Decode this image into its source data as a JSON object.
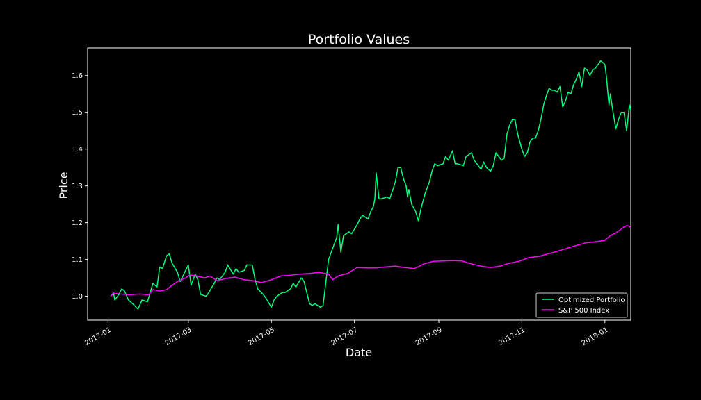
{
  "chart_data": {
    "type": "line",
    "title": "Portfolio Values",
    "xlabel": "Date",
    "ylabel": "Price",
    "xlim": [
      "2016-12-17",
      "2018-01-20"
    ],
    "ylim": [
      0.935,
      1.675
    ],
    "x_ticks": [
      "2017-01",
      "2017-03",
      "2017-05",
      "2017-07",
      "2017-09",
      "2017-11",
      "2018-01"
    ],
    "y_ticks": [
      "1.0",
      "1.1",
      "1.2",
      "1.3",
      "1.4",
      "1.5",
      "1.6"
    ],
    "grid": false,
    "legend_position": "lower right",
    "colors": {
      "background": "#000000",
      "text": "#ffffff",
      "axes": "#ffffff"
    },
    "series": [
      {
        "name": "Optimized Portfolio",
        "color": "#00ff7f",
        "points": [
          [
            "2017-01-03",
            1.0
          ],
          [
            "2017-01-05",
            1.01
          ],
          [
            "2017-01-06",
            0.99
          ],
          [
            "2017-01-09",
            1.005
          ],
          [
            "2017-01-11",
            1.02
          ],
          [
            "2017-01-13",
            1.015
          ],
          [
            "2017-01-16",
            0.99
          ],
          [
            "2017-01-19",
            0.98
          ],
          [
            "2017-01-23",
            0.965
          ],
          [
            "2017-01-26",
            0.99
          ],
          [
            "2017-01-30",
            0.985
          ],
          [
            "2017-02-01",
            1.01
          ],
          [
            "2017-02-03",
            1.035
          ],
          [
            "2017-02-06",
            1.025
          ],
          [
            "2017-02-08",
            1.08
          ],
          [
            "2017-02-10",
            1.075
          ],
          [
            "2017-02-13",
            1.11
          ],
          [
            "2017-02-15",
            1.115
          ],
          [
            "2017-02-17",
            1.09
          ],
          [
            "2017-02-21",
            1.065
          ],
          [
            "2017-02-23",
            1.04
          ],
          [
            "2017-02-27",
            1.07
          ],
          [
            "2017-03-01",
            1.085
          ],
          [
            "2017-03-03",
            1.03
          ],
          [
            "2017-03-06",
            1.06
          ],
          [
            "2017-03-08",
            1.045
          ],
          [
            "2017-03-10",
            1.005
          ],
          [
            "2017-03-14",
            1.0
          ],
          [
            "2017-03-16",
            1.01
          ],
          [
            "2017-03-20",
            1.035
          ],
          [
            "2017-03-22",
            1.05
          ],
          [
            "2017-03-24",
            1.045
          ],
          [
            "2017-03-28",
            1.065
          ],
          [
            "2017-03-30",
            1.085
          ],
          [
            "2017-04-03",
            1.06
          ],
          [
            "2017-04-05",
            1.075
          ],
          [
            "2017-04-07",
            1.065
          ],
          [
            "2017-04-11",
            1.07
          ],
          [
            "2017-04-13",
            1.085
          ],
          [
            "2017-04-17",
            1.085
          ],
          [
            "2017-04-19",
            1.045
          ],
          [
            "2017-04-21",
            1.02
          ],
          [
            "2017-04-25",
            1.005
          ],
          [
            "2017-04-27",
            0.995
          ],
          [
            "2017-05-01",
            0.97
          ],
          [
            "2017-05-03",
            0.99
          ],
          [
            "2017-05-05",
            1.0
          ],
          [
            "2017-05-09",
            1.01
          ],
          [
            "2017-05-11",
            1.01
          ],
          [
            "2017-05-15",
            1.02
          ],
          [
            "2017-05-17",
            1.035
          ],
          [
            "2017-05-19",
            1.025
          ],
          [
            "2017-05-23",
            1.05
          ],
          [
            "2017-05-25",
            1.04
          ],
          [
            "2017-05-29",
            0.98
          ],
          [
            "2017-05-31",
            0.975
          ],
          [
            "2017-06-02",
            0.98
          ],
          [
            "2017-06-06",
            0.97
          ],
          [
            "2017-06-08",
            0.975
          ],
          [
            "2017-06-12",
            1.1
          ],
          [
            "2017-06-14",
            1.12
          ],
          [
            "2017-06-16",
            1.14
          ],
          [
            "2017-06-18",
            1.16
          ],
          [
            "2017-06-19",
            1.195
          ],
          [
            "2017-06-21",
            1.12
          ],
          [
            "2017-06-23",
            1.165
          ],
          [
            "2017-06-27",
            1.175
          ],
          [
            "2017-06-29",
            1.17
          ],
          [
            "2017-07-03",
            1.195
          ],
          [
            "2017-07-05",
            1.21
          ],
          [
            "2017-07-07",
            1.22
          ],
          [
            "2017-07-11",
            1.21
          ],
          [
            "2017-07-13",
            1.23
          ],
          [
            "2017-07-15",
            1.245
          ],
          [
            "2017-07-16",
            1.265
          ],
          [
            "2017-07-17",
            1.335
          ],
          [
            "2017-07-19",
            1.265
          ],
          [
            "2017-07-21",
            1.265
          ],
          [
            "2017-07-25",
            1.27
          ],
          [
            "2017-07-27",
            1.265
          ],
          [
            "2017-07-31",
            1.31
          ],
          [
            "2017-08-02",
            1.35
          ],
          [
            "2017-08-04",
            1.35
          ],
          [
            "2017-08-06",
            1.32
          ],
          [
            "2017-08-08",
            1.3
          ],
          [
            "2017-08-09",
            1.27
          ],
          [
            "2017-08-10",
            1.29
          ],
          [
            "2017-08-12",
            1.25
          ],
          [
            "2017-08-15",
            1.23
          ],
          [
            "2017-08-17",
            1.205
          ],
          [
            "2017-08-19",
            1.24
          ],
          [
            "2017-08-22",
            1.28
          ],
          [
            "2017-08-25",
            1.31
          ],
          [
            "2017-08-27",
            1.34
          ],
          [
            "2017-08-29",
            1.36
          ],
          [
            "2017-08-31",
            1.355
          ],
          [
            "2017-09-04",
            1.36
          ],
          [
            "2017-09-06",
            1.38
          ],
          [
            "2017-09-08",
            1.37
          ],
          [
            "2017-09-11",
            1.395
          ],
          [
            "2017-09-13",
            1.36
          ],
          [
            "2017-09-15",
            1.36
          ],
          [
            "2017-09-19",
            1.355
          ],
          [
            "2017-09-21",
            1.38
          ],
          [
            "2017-09-23",
            1.385
          ],
          [
            "2017-09-25",
            1.39
          ],
          [
            "2017-09-27",
            1.37
          ],
          [
            "2017-09-29",
            1.36
          ],
          [
            "2017-10-02",
            1.345
          ],
          [
            "2017-10-04",
            1.365
          ],
          [
            "2017-10-06",
            1.35
          ],
          [
            "2017-10-09",
            1.34
          ],
          [
            "2017-10-11",
            1.355
          ],
          [
            "2017-10-13",
            1.39
          ],
          [
            "2017-10-17",
            1.37
          ],
          [
            "2017-10-19",
            1.375
          ],
          [
            "2017-10-21",
            1.44
          ],
          [
            "2017-10-23",
            1.465
          ],
          [
            "2017-10-25",
            1.48
          ],
          [
            "2017-10-27",
            1.48
          ],
          [
            "2017-10-29",
            1.44
          ],
          [
            "2017-11-01",
            1.4
          ],
          [
            "2017-11-03",
            1.38
          ],
          [
            "2017-11-05",
            1.39
          ],
          [
            "2017-11-07",
            1.42
          ],
          [
            "2017-11-09",
            1.43
          ],
          [
            "2017-11-11",
            1.43
          ],
          [
            "2017-11-13",
            1.45
          ],
          [
            "2017-11-15",
            1.48
          ],
          [
            "2017-11-17",
            1.52
          ],
          [
            "2017-11-19",
            1.545
          ],
          [
            "2017-11-21",
            1.565
          ],
          [
            "2017-11-23",
            1.56
          ],
          [
            "2017-11-25",
            1.56
          ],
          [
            "2017-11-27",
            1.555
          ],
          [
            "2017-11-29",
            1.57
          ],
          [
            "2017-12-01",
            1.515
          ],
          [
            "2017-12-03",
            1.53
          ],
          [
            "2017-12-05",
            1.555
          ],
          [
            "2017-12-07",
            1.55
          ],
          [
            "2017-12-09",
            1.575
          ],
          [
            "2017-12-11",
            1.59
          ],
          [
            "2017-12-13",
            1.61
          ],
          [
            "2017-12-15",
            1.57
          ],
          [
            "2017-12-17",
            1.62
          ],
          [
            "2017-12-19",
            1.615
          ],
          [
            "2017-12-21",
            1.6
          ],
          [
            "2017-12-23",
            1.615
          ],
          [
            "2017-12-25",
            1.62
          ],
          [
            "2017-12-27",
            1.63
          ],
          [
            "2017-12-29",
            1.64
          ],
          [
            "2018-01-01",
            1.63
          ],
          [
            "2018-01-02",
            1.6
          ],
          [
            "2018-01-04",
            1.52
          ],
          [
            "2018-01-05",
            1.55
          ],
          [
            "2018-01-07",
            1.5
          ],
          [
            "2018-01-09",
            1.455
          ],
          [
            "2018-01-11",
            1.48
          ],
          [
            "2018-01-13",
            1.5
          ],
          [
            "2018-01-15",
            1.5
          ],
          [
            "2018-01-17",
            1.45
          ],
          [
            "2018-01-18",
            1.485
          ],
          [
            "2018-01-19",
            1.52
          ],
          [
            "2018-01-20",
            1.505
          ]
        ]
      },
      {
        "name": "S&P 500 Index",
        "color": "#ff00ff",
        "points": [
          [
            "2017-01-03",
            1.0
          ],
          [
            "2017-01-05",
            1.008
          ],
          [
            "2017-01-10",
            1.006
          ],
          [
            "2017-01-17",
            1.004
          ],
          [
            "2017-01-24",
            1.006
          ],
          [
            "2017-01-31",
            1.004
          ],
          [
            "2017-02-03",
            1.018
          ],
          [
            "2017-02-08",
            1.014
          ],
          [
            "2017-02-13",
            1.018
          ],
          [
            "2017-02-17",
            1.03
          ],
          [
            "2017-02-22",
            1.042
          ],
          [
            "2017-02-27",
            1.05
          ],
          [
            "2017-03-02",
            1.058
          ],
          [
            "2017-03-07",
            1.055
          ],
          [
            "2017-03-13",
            1.05
          ],
          [
            "2017-03-17",
            1.055
          ],
          [
            "2017-03-22",
            1.042
          ],
          [
            "2017-03-28",
            1.048
          ],
          [
            "2017-04-04",
            1.052
          ],
          [
            "2017-04-11",
            1.045
          ],
          [
            "2017-04-18",
            1.042
          ],
          [
            "2017-04-24",
            1.037
          ],
          [
            "2017-05-01",
            1.045
          ],
          [
            "2017-05-08",
            1.055
          ],
          [
            "2017-05-15",
            1.057
          ],
          [
            "2017-05-22",
            1.06
          ],
          [
            "2017-05-29",
            1.062
          ],
          [
            "2017-06-05",
            1.065
          ],
          [
            "2017-06-12",
            1.06
          ],
          [
            "2017-06-15",
            1.045
          ],
          [
            "2017-06-19",
            1.055
          ],
          [
            "2017-06-26",
            1.062
          ],
          [
            "2017-07-03",
            1.078
          ],
          [
            "2017-07-10",
            1.077
          ],
          [
            "2017-07-17",
            1.077
          ],
          [
            "2017-07-24",
            1.08
          ],
          [
            "2017-07-31",
            1.082
          ],
          [
            "2017-08-07",
            1.078
          ],
          [
            "2017-08-14",
            1.075
          ],
          [
            "2017-08-21",
            1.088
          ],
          [
            "2017-08-28",
            1.095
          ],
          [
            "2017-09-04",
            1.096
          ],
          [
            "2017-09-11",
            1.097
          ],
          [
            "2017-09-18",
            1.096
          ],
          [
            "2017-09-25",
            1.088
          ],
          [
            "2017-10-02",
            1.082
          ],
          [
            "2017-10-09",
            1.078
          ],
          [
            "2017-10-16",
            1.082
          ],
          [
            "2017-10-23",
            1.09
          ],
          [
            "2017-10-30",
            1.095
          ],
          [
            "2017-11-06",
            1.105
          ],
          [
            "2017-11-13",
            1.108
          ],
          [
            "2017-11-20",
            1.115
          ],
          [
            "2017-11-27",
            1.122
          ],
          [
            "2017-12-04",
            1.13
          ],
          [
            "2017-12-11",
            1.138
          ],
          [
            "2017-12-18",
            1.145
          ],
          [
            "2017-12-25",
            1.148
          ],
          [
            "2018-01-01",
            1.152
          ],
          [
            "2018-01-05",
            1.165
          ],
          [
            "2018-01-09",
            1.172
          ],
          [
            "2018-01-12",
            1.18
          ],
          [
            "2018-01-15",
            1.188
          ],
          [
            "2018-01-17",
            1.192
          ],
          [
            "2018-01-19",
            1.19
          ],
          [
            "2018-01-20",
            1.186
          ]
        ]
      }
    ]
  }
}
